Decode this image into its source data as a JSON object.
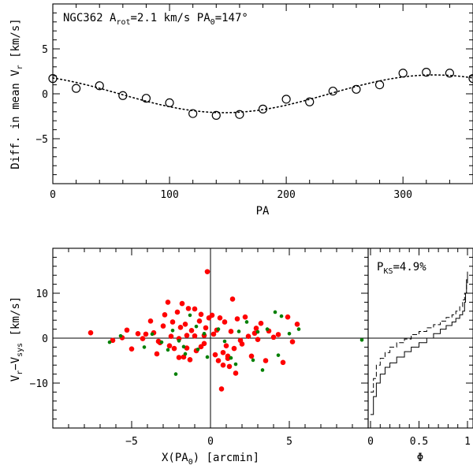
{
  "chart_data": [
    {
      "type": "scatter",
      "panel": "top",
      "title_parts": [
        "NGC362 A",
        "rot",
        "=2.1 km/s   PA",
        "0",
        "=147°"
      ],
      "xlabel": "PA",
      "ylabel_parts": [
        "Diff. in mean V",
        "r",
        " [km/s]"
      ],
      "xlim": [
        0,
        360
      ],
      "ylim": [
        -10,
        10
      ],
      "xticks": [
        0,
        100,
        200,
        300
      ],
      "yticks": [
        -5,
        0,
        5
      ],
      "model": {
        "amplitude": 2.1,
        "pa0": 147,
        "style": "dotted"
      },
      "points": {
        "x": [
          0,
          20,
          40,
          60,
          80,
          100,
          120,
          140,
          160,
          180,
          200,
          220,
          240,
          260,
          280,
          300,
          320,
          340,
          360
        ],
        "y": [
          1.7,
          0.6,
          0.9,
          -0.2,
          -0.5,
          -1.0,
          -2.2,
          -2.4,
          -2.3,
          -1.7,
          -0.6,
          -0.9,
          0.3,
          0.5,
          1.0,
          2.3,
          2.4,
          2.3,
          1.7
        ]
      }
    },
    {
      "type": "scatter",
      "panel": "bottom-left",
      "xlabel_parts": [
        "X(PA",
        "0",
        ") [arcmin]"
      ],
      "ylabel_parts": [
        "V",
        "r",
        "−V",
        "sys",
        " [km/s]"
      ],
      "xlim": [
        -10,
        10
      ],
      "ylim": [
        -20,
        20
      ],
      "xticks": [
        -5,
        0,
        5
      ],
      "yticks": [
        -10,
        0,
        10
      ],
      "series": [
        {
          "name": "red",
          "color": "#ff0000",
          "x": [
            -7.6,
            -6.2,
            -5.6,
            -5.3,
            -5.0,
            -4.6,
            -4.3,
            -4.1,
            -3.8,
            -3.6,
            -3.4,
            -3.2,
            -3.0,
            -2.9,
            -2.7,
            -2.6,
            -2.5,
            -2.4,
            -2.3,
            -2.1,
            -2.0,
            -1.9,
            -1.8,
            -1.7,
            -1.6,
            -1.5,
            -1.5,
            -1.4,
            -1.3,
            -1.2,
            -1.0,
            -0.9,
            -0.7,
            -0.6,
            -0.4,
            -0.3,
            -0.2,
            -0.1,
            0.1,
            0.2,
            0.3,
            0.4,
            0.5,
            0.6,
            0.7,
            0.8,
            0.9,
            1.0,
            1.1,
            1.2,
            1.3,
            1.4,
            1.5,
            1.6,
            1.7,
            1.9,
            2.0,
            2.2,
            2.4,
            2.6,
            2.8,
            3.0,
            3.2,
            3.5,
            3.7,
            4.0,
            4.3,
            4.6,
            4.9,
            5.2,
            5.5,
            -0.6,
            1.1,
            -2.0,
            0.8,
            -3.3,
            -1.0,
            2.9,
            -0.4
          ],
          "y": [
            1.2,
            -0.5,
            0.1,
            1.8,
            -2.4,
            1.0,
            -0.1,
            0.9,
            3.8,
            1.2,
            -3.5,
            -1.0,
            2.7,
            5.2,
            8.0,
            -1.7,
            0.4,
            3.6,
            -2.3,
            5.8,
            -0.1,
            2.4,
            7.7,
            -4.2,
            3.1,
            -2.2,
            0.6,
            6.6,
            -4.8,
            1.7,
            0.5,
            -2.8,
            3.8,
            5.3,
            -1.2,
            2.3,
            14.8,
            4.5,
            5.1,
            0.9,
            -3.7,
            1.8,
            -5.0,
            4.5,
            -11.3,
            -6.0,
            3.6,
            -1.7,
            -4.5,
            -6.3,
            1.5,
            8.7,
            -2.3,
            -7.8,
            4.3,
            -0.5,
            -1.3,
            4.7,
            0.4,
            -4.0,
            1.1,
            -0.3,
            3.3,
            -5.0,
            1.6,
            0.2,
            0.8,
            -5.4,
            4.7,
            -0.8,
            3.1,
            -1.9,
            -4.0,
            -4.3,
            -3.2,
            -0.7,
            6.5,
            2.2,
            0.6
          ]
        },
        {
          "name": "green",
          "color": "#007f00",
          "x": [
            -6.4,
            -3.7,
            -3.1,
            -2.7,
            -2.4,
            -2.0,
            -1.7,
            -1.6,
            -1.3,
            -0.8,
            -0.4,
            -0.2,
            0.5,
            0.9,
            1.3,
            1.8,
            2.3,
            2.7,
            3.3,
            3.6,
            4.1,
            4.3,
            4.5,
            5.0,
            5.6,
            9.6,
            -5.7,
            -4.2,
            -2.2,
            -0.9,
            1.6,
            3.0
          ],
          "y": [
            -0.9,
            0.9,
            -0.9,
            -2.6,
            1.7,
            -0.6,
            -1.9,
            -3.5,
            5.1,
            -2.5,
            1.0,
            -4.2,
            2.0,
            -0.7,
            -4.4,
            1.5,
            3.6,
            -4.9,
            -7.1,
            2.0,
            5.8,
            -3.8,
            4.9,
            1.0,
            2.0,
            -0.4,
            0.5,
            -2.0,
            -8.0,
            2.6,
            -5.8,
            1.4
          ]
        }
      ]
    },
    {
      "type": "line",
      "panel": "bottom-right",
      "label_parts": [
        "P",
        "KS",
        "=4.9%"
      ],
      "xlabel": "Φ",
      "xlim": [
        0,
        1
      ],
      "ylim": [
        -20,
        20
      ],
      "xticks": [
        0,
        0.5,
        1
      ],
      "xtick_labels": [
        "0",
        "0.5",
        "1"
      ],
      "series": [
        {
          "name": "solid",
          "style": "solid",
          "x": [
            0,
            0.03,
            0.06,
            0.1,
            0.15,
            0.2,
            0.27,
            0.35,
            0.42,
            0.5,
            0.58,
            0.65,
            0.72,
            0.78,
            0.84,
            0.88,
            0.92,
            0.95,
            0.97,
            0.98,
            0.99,
            1.0
          ],
          "y": [
            -17,
            -13,
            -10,
            -8,
            -6.5,
            -5.5,
            -4.2,
            -3,
            -2,
            -1,
            0,
            1,
            2,
            2.8,
            3.6,
            4.4,
            5.2,
            6,
            8,
            10,
            13,
            14.8
          ]
        },
        {
          "name": "dashed",
          "style": "dashed",
          "x": [
            0,
            0.03,
            0.06,
            0.1,
            0.15,
            0.2,
            0.27,
            0.35,
            0.42,
            0.5,
            0.58,
            0.65,
            0.72,
            0.78,
            0.84,
            0.88,
            0.92,
            0.95,
            0.97,
            0.99,
            1.0
          ],
          "y": [
            -12,
            -9,
            -6,
            -4.5,
            -3.2,
            -2,
            -1,
            -0.2,
            0.8,
            1.5,
            2.3,
            3,
            3.8,
            4.6,
            5.2,
            6,
            7,
            8.5,
            10,
            12,
            13
          ]
        }
      ]
    }
  ]
}
